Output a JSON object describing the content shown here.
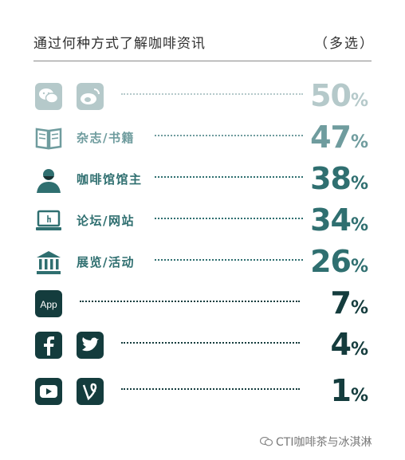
{
  "header": {
    "title": "通过何种方式了解咖啡资讯",
    "note": "（多选）"
  },
  "chart_data": {
    "type": "bar",
    "title": "通过何种方式了解咖啡资讯",
    "categories": [
      "",
      "杂志/书籍",
      "咖啡馆馆主",
      "论坛/网站",
      "展览/活动",
      "",
      "",
      ""
    ],
    "values": [
      50,
      47,
      38,
      34,
      26,
      7,
      4,
      1
    ],
    "unit": "%",
    "icons": [
      [
        "wechat-icon",
        "weibo-icon"
      ],
      [
        "book-icon"
      ],
      [
        "barista-icon"
      ],
      [
        "laptop-icon"
      ],
      [
        "museum-icon"
      ],
      [
        "app-icon"
      ],
      [
        "facebook-icon",
        "twitter-icon"
      ],
      [
        "youtube-icon",
        "vine-icon"
      ]
    ],
    "colors": [
      "#b5c9ca",
      "#6f9c9e",
      "#2f6f70",
      "#2f6f70",
      "#2f6f70",
      "#143c3d",
      "#143c3d",
      "#143c3d"
    ],
    "icon_text": {
      "app": "App"
    }
  },
  "watermark": "CTI咖啡茶与冰淇淋"
}
